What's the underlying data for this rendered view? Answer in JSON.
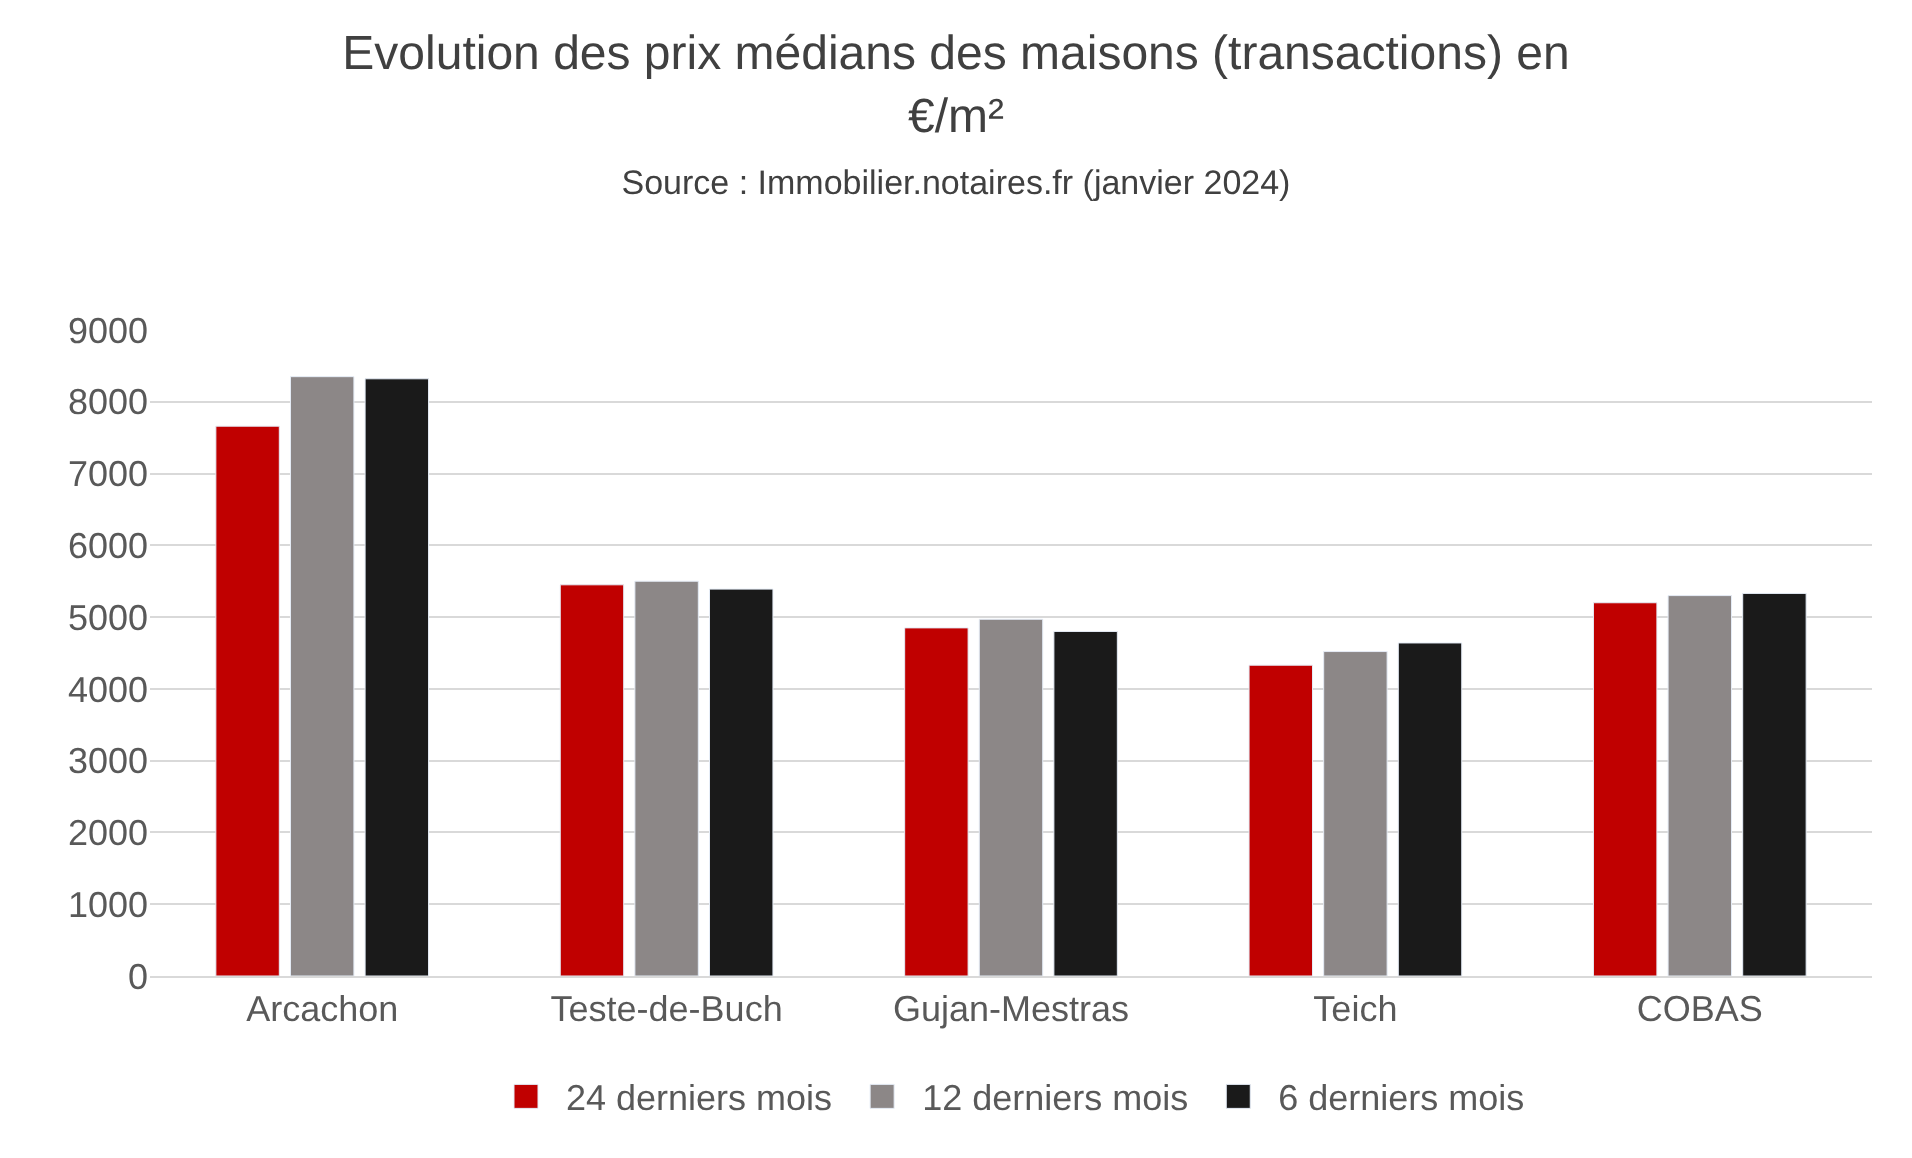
{
  "chart_data": {
    "type": "bar",
    "title": "Evolution des prix médians des maisons (transactions) en €/m²",
    "subtitle": "Source : Immobilier.notaires.fr (janvier 2024)",
    "categories": [
      "Arcachon",
      "Teste-de-Buch",
      "Gujan-Mestras",
      "Teich",
      "COBAS"
    ],
    "series": [
      {
        "name": "24 derniers mois",
        "color": "#c00000",
        "values": [
          7660,
          5450,
          4850,
          4330,
          5200
        ]
      },
      {
        "name": "12 derniers mois",
        "color": "#8c8787",
        "values": [
          8350,
          5500,
          4970,
          4520,
          5300
        ]
      },
      {
        "name": "6 derniers mois",
        "color": "#1a1a1a",
        "values": [
          8320,
          5390,
          4800,
          4640,
          5330
        ]
      }
    ],
    "ylim": [
      0,
      9000
    ],
    "yticks": [
      0,
      1000,
      2000,
      3000,
      4000,
      5000,
      6000,
      7000,
      8000,
      9000
    ],
    "grid": "y",
    "legend": "bottom"
  }
}
